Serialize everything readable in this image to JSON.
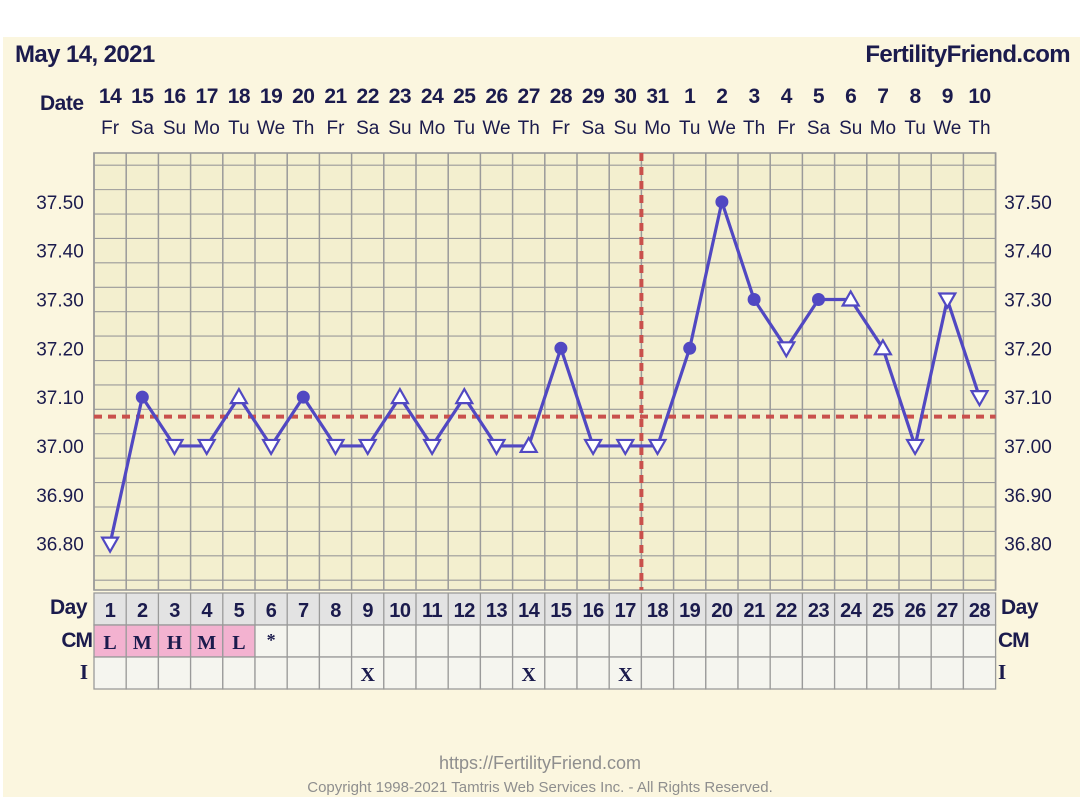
{
  "page": {
    "chart_date": "May 14, 2021",
    "site": "FertilityFriend.com",
    "footer_url": "https://FertilityFriend.com",
    "footer_copyright": "Copyright 1998-2021 Tamtris Web Services Inc. - All Rights Reserved."
  },
  "colors": {
    "panel_bg": "#fbf6df",
    "plot_bg": "#f3efcf",
    "grid": "#9a9a9a",
    "series": "#5148c2",
    "coverline": "#c9504c",
    "label": "#1b1b4d",
    "row_shade": "#e3e3e3",
    "cell_bg": "#f5f5ef",
    "cm_highlight": "#f3b2d0"
  },
  "chart_data": {
    "type": "line",
    "title": "",
    "row_labels": {
      "date": "Date",
      "day": "Day",
      "cm": "CM",
      "intercourse": "I"
    },
    "dates": [
      "14",
      "15",
      "16",
      "17",
      "18",
      "19",
      "20",
      "21",
      "22",
      "23",
      "24",
      "25",
      "26",
      "27",
      "28",
      "29",
      "30",
      "31",
      "1",
      "2",
      "3",
      "4",
      "5",
      "6",
      "7",
      "8",
      "9",
      "10"
    ],
    "weekdays": [
      "Fr",
      "Sa",
      "Su",
      "Mo",
      "Tu",
      "We",
      "Th",
      "Fr",
      "Sa",
      "Su",
      "Mo",
      "Tu",
      "We",
      "Th",
      "Fr",
      "Sa",
      "Su",
      "Mo",
      "Tu",
      "We",
      "Th",
      "Fr",
      "Sa",
      "Su",
      "Mo",
      "Tu",
      "We",
      "Th"
    ],
    "cycle_days": [
      1,
      2,
      3,
      4,
      5,
      6,
      7,
      8,
      9,
      10,
      11,
      12,
      13,
      14,
      15,
      16,
      17,
      18,
      19,
      20,
      21,
      22,
      23,
      24,
      25,
      26,
      27,
      28
    ],
    "series": [
      {
        "values": [
          36.8,
          37.1,
          37.0,
          37.0,
          37.1,
          37.0,
          37.1,
          37.0,
          37.0,
          37.1,
          37.0,
          37.1,
          37.0,
          37.0,
          37.2,
          37.0,
          37.0,
          37.0,
          37.2,
          37.5,
          37.3,
          37.2,
          37.3,
          37.3,
          37.2,
          37.0,
          37.3,
          37.1
        ],
        "markers": [
          "down",
          "dot",
          "down",
          "down",
          "up",
          "down",
          "dot",
          "down",
          "down",
          "up",
          "down",
          "up",
          "down",
          "up",
          "dot",
          "down",
          "down",
          "down",
          "dot",
          "dot",
          "dot",
          "down",
          "dot",
          "up",
          "up",
          "down",
          "down",
          "down"
        ]
      }
    ],
    "y_ticks": [
      "37.50",
      "37.40",
      "37.30",
      "37.20",
      "37.10",
      "37.00",
      "36.90",
      "36.80"
    ],
    "ylim": [
      36.705,
      37.6
    ],
    "coverline": 37.06,
    "ovulation_after_day": 17,
    "cervical_mucus": [
      "L",
      "M",
      "H",
      "M",
      "L",
      "*",
      "",
      "",
      "",
      "",
      "",
      "",
      "",
      "",
      "",
      "",
      "",
      "",
      "",
      "",
      "",
      "",
      "",
      "",
      "",
      "",
      "",
      ""
    ],
    "intercourse": [
      "",
      "",
      "",
      "",
      "",
      "",
      "",
      "",
      "X",
      "",
      "",
      "",
      "",
      "X",
      "",
      "",
      "X",
      "",
      "",
      "",
      "",
      "",
      "",
      "",
      "",
      "",
      "",
      ""
    ],
    "grid": true
  }
}
